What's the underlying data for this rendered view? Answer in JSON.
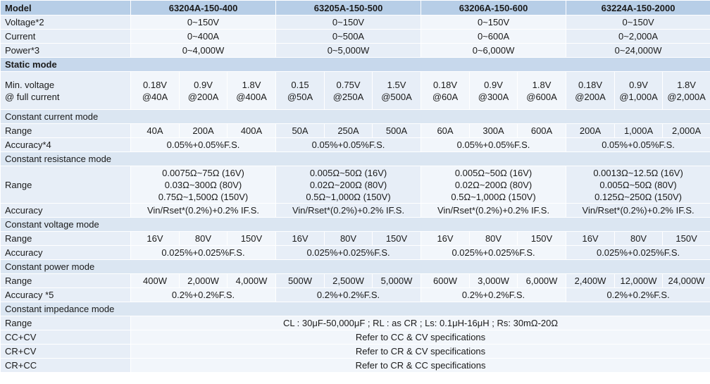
{
  "header": {
    "model_label": "Model",
    "models": [
      "63204A-150-400",
      "63205A-150-500",
      "63206A-150-600",
      "63224A-150-2000"
    ]
  },
  "voltage": {
    "label": "Voltage*2",
    "values": [
      "0~150V",
      "0~150V",
      "0~150V",
      "0~150V"
    ]
  },
  "current": {
    "label": "Current",
    "values": [
      "0~400A",
      "0~500A",
      "0~600A",
      "0~2,000A"
    ]
  },
  "power": {
    "label": "Power*3",
    "values": [
      "0~4,000W",
      "0~5,000W",
      "0~6,000W",
      "0~24,000W"
    ]
  },
  "static_mode": {
    "title": "Static mode",
    "min_voltage": {
      "label_line1": "Min. voltage",
      "label_line2": "@ full current",
      "cells": [
        [
          "0.18V",
          "@40A"
        ],
        [
          "0.9V",
          "@200A"
        ],
        [
          "1.8V",
          "@400A"
        ],
        [
          "0.15",
          "@50A"
        ],
        [
          "0.75V",
          "@250A"
        ],
        [
          "1.5V",
          "@500A"
        ],
        [
          "0.18V",
          "@60A"
        ],
        [
          "0.9V",
          "@300A"
        ],
        [
          "1.8V",
          "@600A"
        ],
        [
          "0.18V",
          "@200A"
        ],
        [
          "0.9V",
          "@1,000A"
        ],
        [
          "1.8V",
          "@2,000A"
        ]
      ]
    }
  },
  "cc_mode": {
    "title": "Constant current mode",
    "range_label": "Range",
    "ranges": [
      "40A",
      "200A",
      "400A",
      "50A",
      "250A",
      "500A",
      "60A",
      "300A",
      "600A",
      "200A",
      "1,000A",
      "2,000A"
    ],
    "accuracy_label": "Accuracy*4",
    "accuracy": [
      "0.05%+0.05%F.S.",
      "0.05%+0.05%F.S.",
      "0.05%+0.05%F.S.",
      "0.05%+0.05%F.S."
    ]
  },
  "cr_mode": {
    "title": "Constant resistance mode",
    "range_label": "Range",
    "ranges": [
      [
        "0.0075Ω~75Ω (16V)",
        "0.03Ω~300Ω (80V)",
        "0.75Ω~1,500Ω (150V)"
      ],
      [
        "0.005Ω~50Ω (16V)",
        "0.02Ω~200Ω (80V)",
        "0.5Ω~1,000Ω (150V)"
      ],
      [
        "0.005Ω~50Ω (16V)",
        "0.02Ω~200Ω (80V)",
        "0.5Ω~1,000Ω (150V)"
      ],
      [
        "0.0013Ω~12.5Ω (16V)",
        "0.005Ω~50Ω (80V)",
        "0.125Ω~250Ω (150V)"
      ]
    ],
    "accuracy_label": "Accuracy",
    "accuracy": [
      "Vin/Rset*(0.2%)+0.2% IF.S.",
      "Vin/Rset*(0.2%)+0.2% IF.S.",
      "Vin/Rset*(0.2%)+0.2% IF.S.",
      "Vin/Rset*(0.2%)+0.2% IF.S."
    ]
  },
  "cv_mode": {
    "title": "Constant voltage mode",
    "range_label": "Range",
    "ranges": [
      "16V",
      "80V",
      "150V",
      "16V",
      "80V",
      "150V",
      "16V",
      "80V",
      "150V",
      "16V",
      "80V",
      "150V"
    ],
    "accuracy_label": "Accuracy",
    "accuracy": [
      "0.025%+0.025%F.S.",
      "0.025%+0.025%F.S.",
      "0.025%+0.025%F.S.",
      "0.025%+0.025%F.S."
    ]
  },
  "cp_mode": {
    "title": "Constant power mode",
    "range_label": "Range",
    "ranges": [
      "400W",
      "2,000W",
      "4,000W",
      "500W",
      "2,500W",
      "5,000W",
      "600W",
      "3,000W",
      "6,000W",
      "2,400W",
      "12,000W",
      "24,000W"
    ],
    "accuracy_label": "Accuracy *5",
    "accuracy": [
      "0.2%+0.2%F.S.",
      "0.2%+0.2%F.S.",
      "0.2%+0.2%F.S.",
      "0.2%+0.2%F.S."
    ]
  },
  "cz_mode": {
    "title": "Constant impedance mode",
    "range_label": "Range",
    "range_value": "CL : 30μF-50,000μF ; RL : as CR ; Ls: 0.1μH-16μH ; Rs: 30mΩ-20Ω"
  },
  "combined": [
    {
      "label": "CC+CV",
      "value": "Refer to CC & CV specifications"
    },
    {
      "label": "CR+CV",
      "value": "Refer to CR & CV specifications"
    },
    {
      "label": "CR+CC",
      "value": "Refer to CR & CC specifications"
    }
  ]
}
